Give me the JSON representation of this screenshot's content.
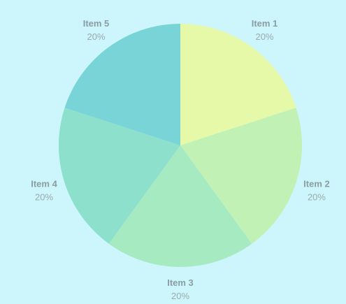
{
  "chart_data": {
    "type": "pie",
    "title": "",
    "categories": [
      "Item 1",
      "Item 2",
      "Item 3",
      "Item 4",
      "Item 5"
    ],
    "values": [
      20,
      20,
      20,
      20,
      20
    ],
    "value_labels": [
      "20%",
      "20%",
      "20%",
      "20%",
      "20%"
    ],
    "colors": [
      "#e6f9a9",
      "#c2f1b6",
      "#a6eac1",
      "#8ce0cc",
      "#79d4d7"
    ],
    "background": "#ccf6fb",
    "start_angle_deg": 0,
    "direction": "clockwise"
  }
}
